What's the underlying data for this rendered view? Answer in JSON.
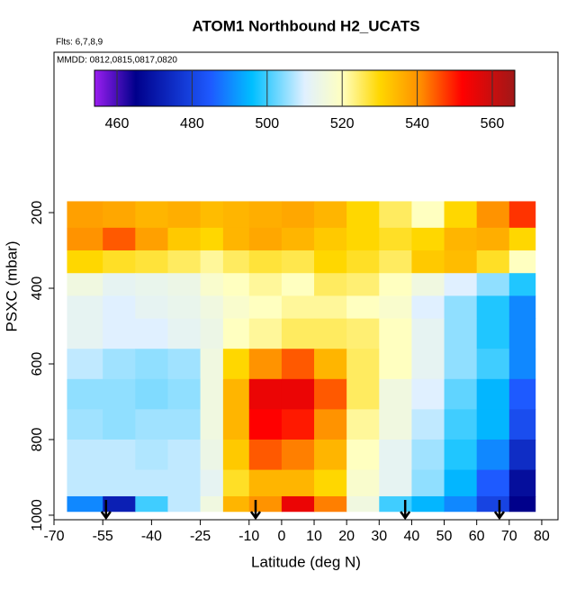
{
  "chart_data": {
    "type": "heatmap",
    "title": "ATOM1 Northbound H2_UCATS",
    "subtitle": "Flts: 6,7,8,9",
    "annotation": "MMDD: 0812,0815,0817,0820",
    "xlabel": "Latitude (deg N)",
    "ylabel": "PSXC (mbar)",
    "xlim": [
      -70,
      85
    ],
    "ylim": [
      1012,
      -224
    ],
    "xticks": [
      -70,
      -55,
      -40,
      -25,
      -10,
      0,
      10,
      20,
      30,
      40,
      50,
      60,
      70,
      80
    ],
    "yticks": [
      200,
      400,
      600,
      800,
      1000
    ],
    "colorbar_lim": [
      454,
      566
    ],
    "colorbar_ticks": [
      460,
      480,
      500,
      520,
      540,
      560
    ],
    "colormap": [
      {
        "value": 454,
        "color": "#9a1ef0"
      },
      {
        "value": 465,
        "color": "#00008b"
      },
      {
        "value": 485,
        "color": "#1e5aff"
      },
      {
        "value": 496,
        "color": "#00bfff"
      },
      {
        "value": 510,
        "color": "#e0f0ff"
      },
      {
        "value": 520,
        "color": "#ffffc0"
      },
      {
        "value": 530,
        "color": "#ffd700"
      },
      {
        "value": 541,
        "color": "#ff8c00"
      },
      {
        "value": 552,
        "color": "#ff0000"
      },
      {
        "value": 566,
        "color": "#a01818"
      }
    ],
    "lat_edges": [
      -66,
      -55,
      -45,
      -35,
      -25,
      -18,
      -10,
      0,
      10,
      20,
      30,
      40,
      50,
      60,
      70,
      78
    ],
    "pressure_edges": [
      170,
      240,
      300,
      360,
      420,
      480,
      560,
      640,
      720,
      800,
      880,
      950,
      990
    ],
    "values": [
      [
        538,
        537,
        535,
        536,
        534,
        535,
        536,
        537,
        535,
        530,
        525,
        520,
        530,
        540,
        548
      ],
      [
        540,
        545,
        538,
        532,
        530,
        535,
        537,
        535,
        532,
        530,
        528,
        530,
        535,
        536,
        530
      ],
      [
        530,
        528,
        527,
        525,
        522,
        525,
        527,
        526,
        530,
        528,
        525,
        532,
        534,
        528,
        520
      ],
      [
        515,
        512,
        513,
        514,
        518,
        520,
        522,
        520,
        525,
        524,
        520,
        515,
        510,
        505,
        498
      ],
      [
        512,
        510,
        512,
        513,
        515,
        518,
        520,
        522,
        522,
        520,
        518,
        510,
        505,
        498,
        490
      ],
      [
        512,
        510,
        510,
        512,
        514,
        520,
        522,
        525,
        525,
        524,
        520,
        512,
        505,
        498,
        490
      ],
      [
        508,
        506,
        505,
        506,
        515,
        530,
        540,
        545,
        535,
        525,
        520,
        512,
        505,
        500,
        490
      ],
      [
        505,
        505,
        504,
        505,
        515,
        535,
        555,
        555,
        545,
        525,
        515,
        510,
        502,
        495,
        485
      ],
      [
        506,
        505,
        506,
        506,
        515,
        535,
        552,
        550,
        540,
        522,
        515,
        508,
        500,
        495,
        482
      ],
      [
        508,
        508,
        507,
        508,
        514,
        532,
        545,
        542,
        535,
        520,
        512,
        506,
        498,
        490,
        475
      ],
      [
        508,
        508,
        508,
        508,
        512,
        528,
        535,
        535,
        530,
        518,
        512,
        505,
        495,
        485,
        468
      ],
      [
        490,
        472,
        500,
        508,
        515,
        535,
        540,
        555,
        542,
        515,
        500,
        495,
        490,
        480,
        465
      ]
    ],
    "arrows": [
      -54,
      -8,
      38,
      67
    ]
  }
}
